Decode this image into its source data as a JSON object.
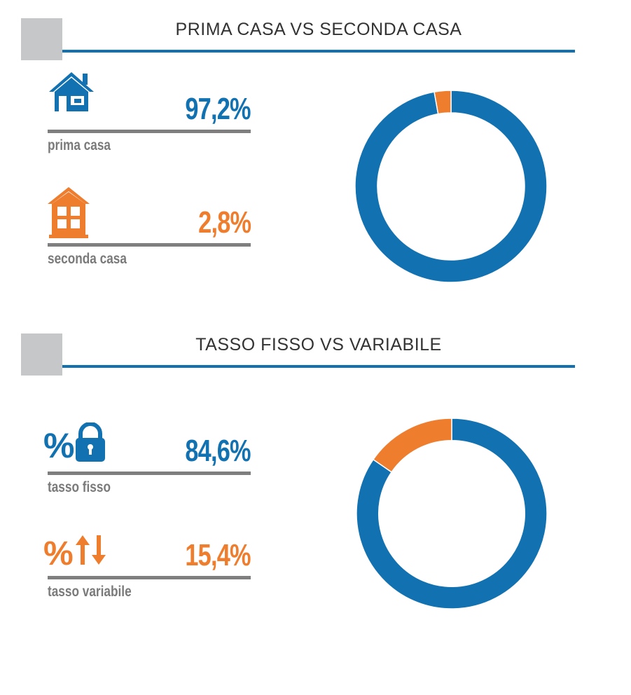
{
  "colors": {
    "blue": "#1271b0",
    "orange": "#ef7d2e",
    "rule": "#7f7f7f",
    "label": "#7a7a7a",
    "square": "#c6c7c9"
  },
  "sections": [
    {
      "title": "PRIMA CASA VS SECONDA CASA",
      "items": [
        {
          "icon": "house-icon",
          "value": "97,2%",
          "label": "prima casa",
          "color": "blue"
        },
        {
          "icon": "building-icon",
          "value": "2,8%",
          "label": "seconda casa",
          "color": "orange"
        }
      ]
    },
    {
      "title": "TASSO FISSO VS VARIABILE",
      "items": [
        {
          "icon": "percent-lock-icon",
          "value": "84,6%",
          "label": "tasso fisso",
          "color": "blue"
        },
        {
          "icon": "percent-arrows-icon",
          "value": "15,4%",
          "label": "tasso variabile",
          "color": "orange"
        }
      ]
    }
  ],
  "chart_data": [
    {
      "type": "pie",
      "title": "PRIMA CASA VS SECONDA CASA",
      "categories": [
        "prima casa",
        "seconda casa"
      ],
      "values": [
        97.2,
        2.8
      ],
      "colors": [
        "#1271b0",
        "#ef7d2e"
      ]
    },
    {
      "type": "pie",
      "title": "TASSO FISSO VS VARIABILE",
      "categories": [
        "tasso fisso",
        "tasso variabile"
      ],
      "values": [
        84.6,
        15.4
      ],
      "colors": [
        "#1271b0",
        "#ef7d2e"
      ]
    }
  ]
}
